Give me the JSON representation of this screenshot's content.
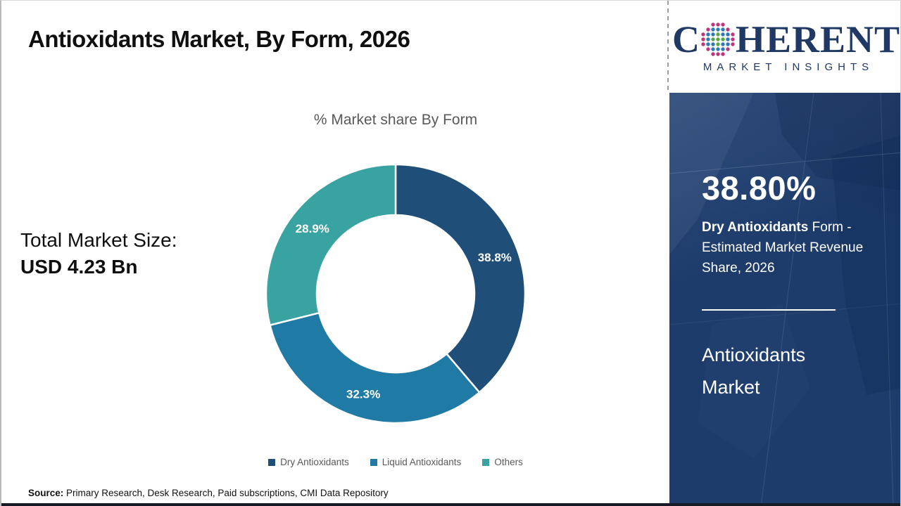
{
  "header": {
    "title": "Antioxidants Market, By Form, 2026"
  },
  "logo": {
    "line1_start": "C",
    "line1_rest": "HERENT",
    "line2": "MARKET INSIGHTS"
  },
  "left_panel": {
    "market_size_label": "Total Market Size:",
    "market_size_value": "USD 4.23 Bn"
  },
  "chart_data": {
    "type": "pie",
    "donut": true,
    "title": "% Market share By Form",
    "categories": [
      "Dry Antioxidants",
      "Liquid Antioxidants",
      "Others"
    ],
    "values": [
      38.8,
      32.3,
      28.9
    ],
    "labels": [
      "38.8%",
      "32.3%",
      "28.9%"
    ],
    "colors": [
      "#1F4E79",
      "#1F7AA6",
      "#38A3A0"
    ],
    "start_angle_deg": 0,
    "direction": "clockwise",
    "legend_position": "bottom"
  },
  "sidebar": {
    "stat_value": "38.80%",
    "stat_desc_bold": "Dry Antioxidants",
    "stat_desc_rest": " Form - Estimated Market Revenue Share, 2026",
    "market_name": "Antioxidants Market"
  },
  "footer": {
    "source_label": "Source:",
    "source_text": " Primary Research, Desk Research, Paid subscriptions, CMI Data Repository"
  },
  "colors": {
    "dark_blue": "#1F4E79",
    "mid_blue": "#1F7AA6",
    "teal": "#38A3A0",
    "sidebar_bg": "#1E3C6B",
    "logo_navy": "#1F3864",
    "logo_green": "#5AA746",
    "logo_blue": "#2E79B8",
    "logo_magenta": "#C0367C"
  }
}
